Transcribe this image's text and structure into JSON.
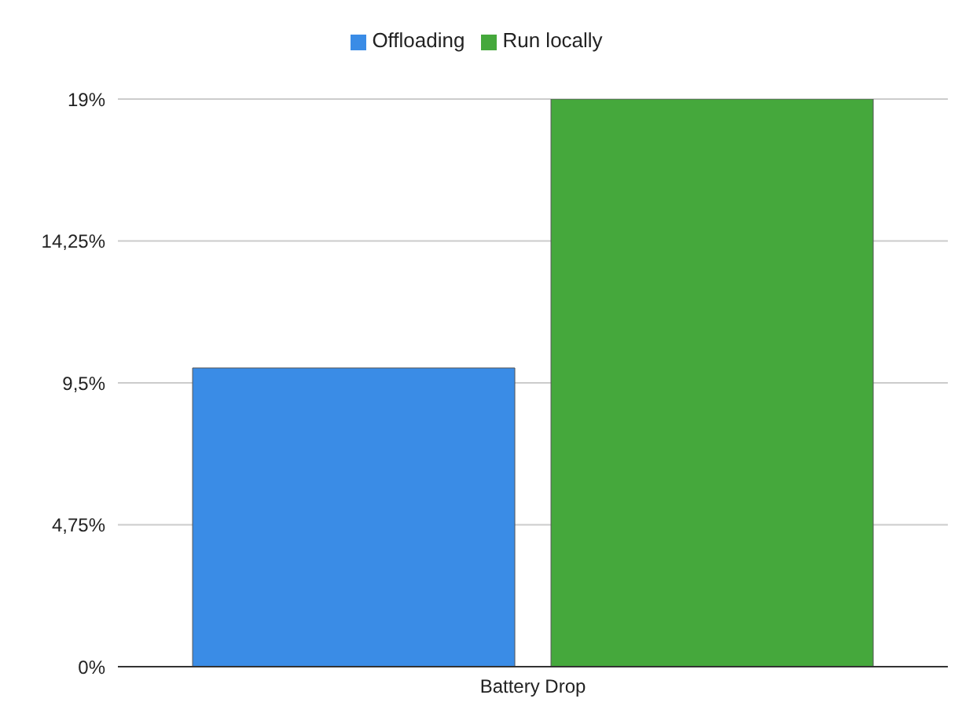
{
  "chart_data": {
    "type": "bar",
    "categories": [
      "Battery Drop"
    ],
    "series": [
      {
        "name": "Offloading",
        "color": "#3a8ce6",
        "values": [
          10
        ]
      },
      {
        "name": "Run locally",
        "color": "#45a83c",
        "values": [
          19
        ]
      }
    ],
    "ylim": [
      0,
      19
    ],
    "yticks": [
      {
        "value": 0,
        "label": "0%"
      },
      {
        "value": 4.75,
        "label": "4,75%"
      },
      {
        "value": 9.5,
        "label": "9,5%"
      },
      {
        "value": 14.25,
        "label": "14,25%"
      },
      {
        "value": 19,
        "label": "19%"
      }
    ],
    "grid": "y",
    "legend": "top"
  }
}
